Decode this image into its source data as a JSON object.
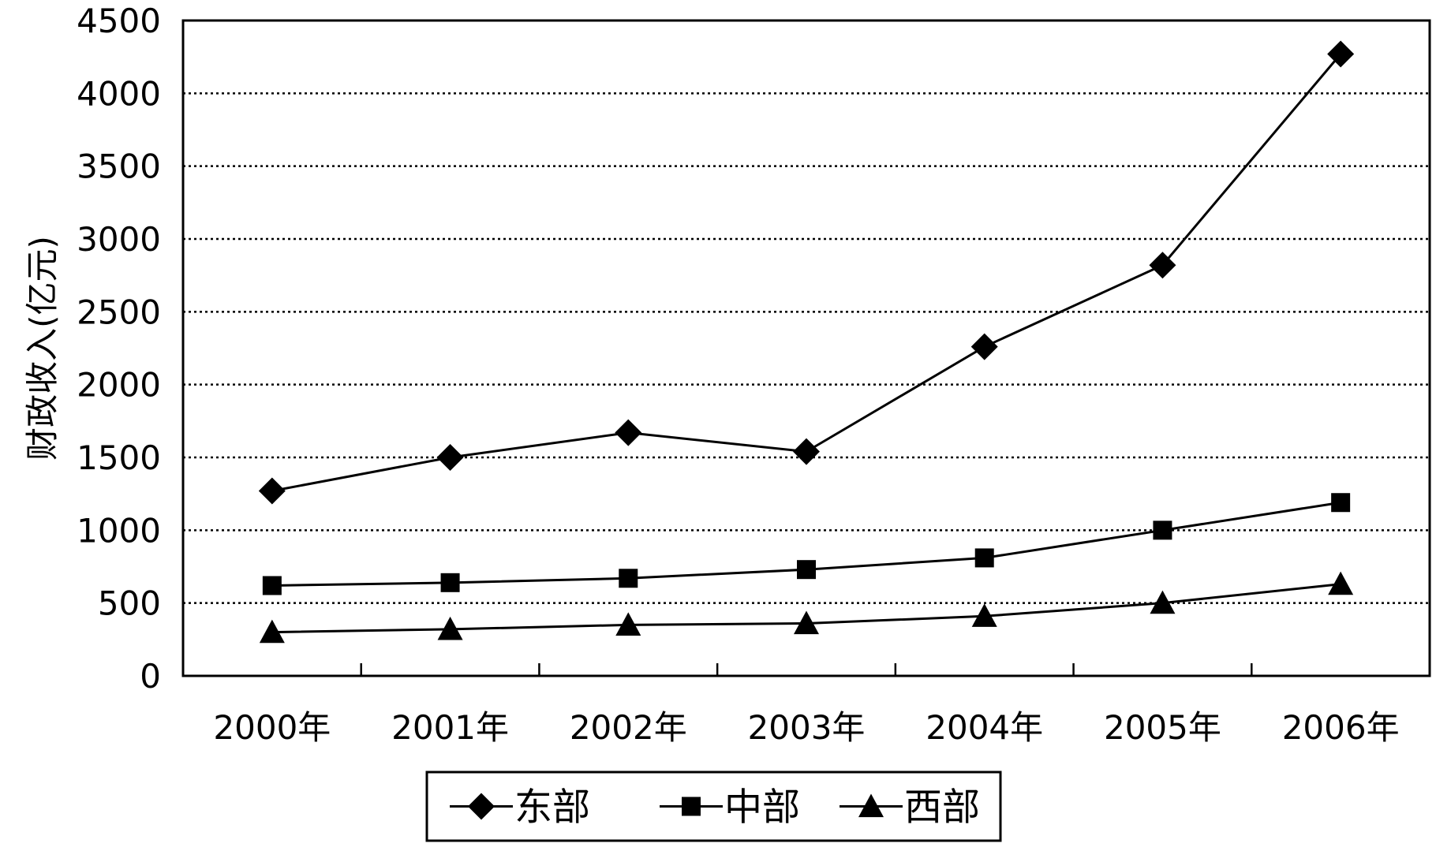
{
  "chart_data": {
    "type": "line",
    "title": "",
    "xlabel": "",
    "ylabel": "财政收入(亿元)",
    "ylim": [
      0,
      4500
    ],
    "yticks": [
      0,
      500,
      1000,
      1500,
      2000,
      2500,
      3000,
      3500,
      4000,
      4500
    ],
    "categories": [
      "2000年",
      "2001年",
      "2002年",
      "2003年",
      "2004年",
      "2005年",
      "2006年"
    ],
    "grid": "horizontal dotted",
    "legend_position": "bottom",
    "series": [
      {
        "name": "东部",
        "marker": "diamond",
        "values": [
          1270,
          1500,
          1670,
          1540,
          2260,
          2820,
          4270
        ]
      },
      {
        "name": "中部",
        "marker": "square",
        "values": [
          620,
          640,
          670,
          730,
          810,
          1000,
          1190
        ]
      },
      {
        "name": "西部",
        "marker": "triangle",
        "values": [
          300,
          320,
          350,
          360,
          410,
          500,
          630
        ]
      }
    ],
    "colors": {
      "line": "#000000",
      "grid": "#000000",
      "background": "#ffffff"
    }
  }
}
